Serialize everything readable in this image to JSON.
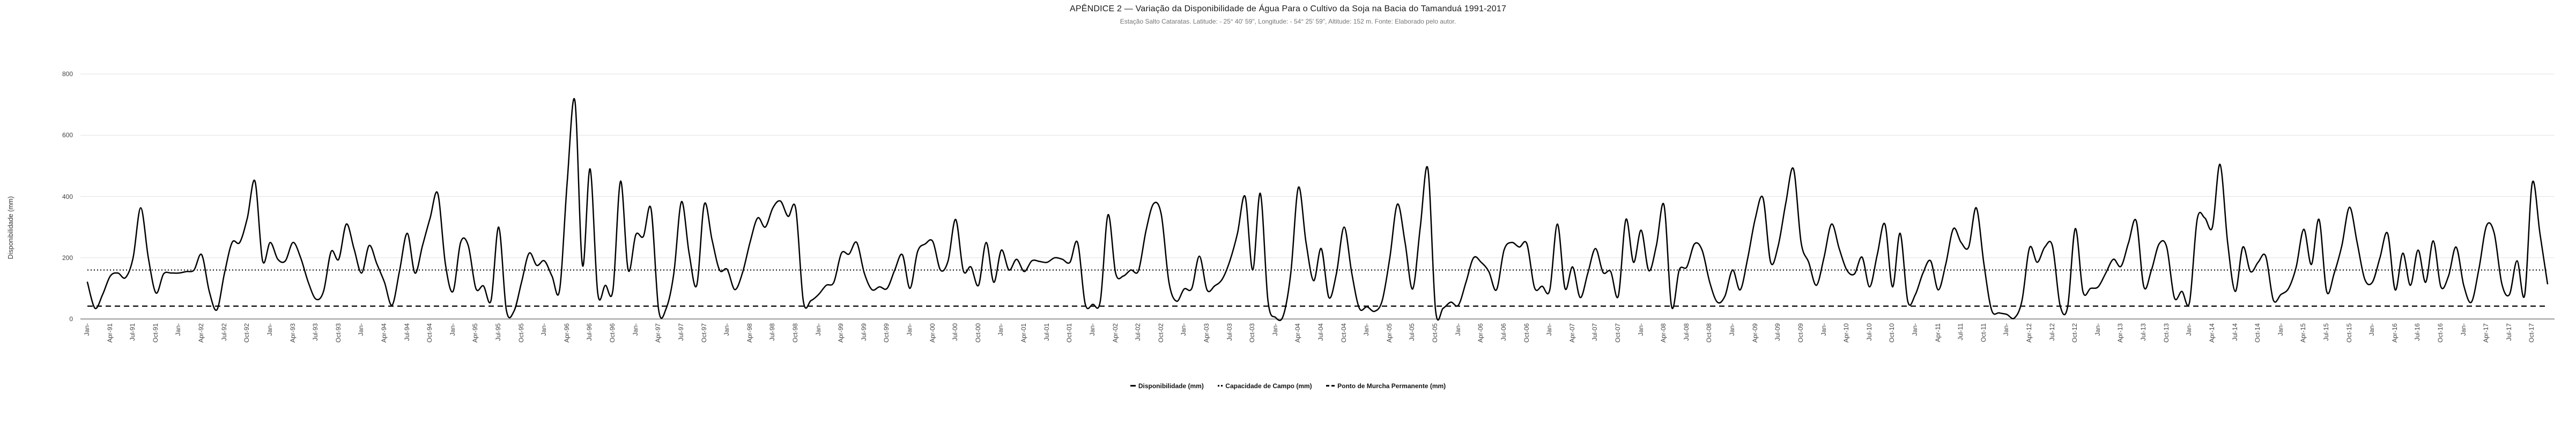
{
  "header": {
    "title": "APÊNDICE 2 — Variação da Disponibilidade de Água Para o Cultivo da Soja na Bacia do Tamanduá 1991-2017",
    "subtitle": "Estação Salto Cataratas. Latitude: - 25° 40' 59\", Longitude: - 54° 25' 59\", Altitude: 152 m. Fonte: Elaborado pelo autor."
  },
  "chart_data": {
    "type": "line",
    "title": "APÊNDICE 2 — Variação da Disponibilidade de Água Para o Cultivo da Soja na Bacia do Tamanduá 1991-2017",
    "subtitle": "Estação Salto Cataratas. Latitude: - 25° 40' 59\", Longitude: - 54° 25' 59\", Altitude: 152 m. Fonte: Elaborado pelo autor.",
    "ylabel": "Disponibilidade (mm)",
    "xlabel": "",
    "ylim": [
      0,
      800
    ],
    "yticks": [
      0,
      200,
      400,
      600,
      800
    ],
    "grid": "horizontal",
    "legend_position": "bottom",
    "legend": [
      "Disponibilidade (mm)",
      "Capacidade de Campo (mm)",
      "Ponto de Murcha Permanente (mm)"
    ],
    "line_color": "#000000",
    "x_start_month": "Jan-1991",
    "x_end_month": "Dec-2017",
    "x_tick_every_months": 3,
    "x_tick_labels": [
      "Jan-",
      "Apr-91",
      "Jul-91",
      "Oct-91",
      "Jan-",
      "Apr-92",
      "Jul-92",
      "Oct-92",
      "Jan-",
      "Apr-93",
      "Jul-93",
      "Oct-93",
      "Jan-",
      "Apr-94",
      "Jul-94",
      "Oct-94",
      "Jan-",
      "Apr-95",
      "Jul-95",
      "Oct-95",
      "Jan-",
      "Apr-96",
      "Jul-96",
      "Oct-96",
      "Jan-",
      "Apr-97",
      "Jul-97",
      "Oct-97",
      "Jan-",
      "Apr-98",
      "Jul-98",
      "Oct-98",
      "Jan-",
      "Apr-99",
      "Jul-99",
      "Oct-99",
      "Jan-",
      "Apr-00",
      "Jul-00",
      "Oct-00",
      "Jan-",
      "Apr-01",
      "Jul-01",
      "Oct-01",
      "Jan-",
      "Apr-02",
      "Jul-02",
      "Oct-02",
      "Jan-",
      "Apr-03",
      "Jul-03",
      "Oct-03",
      "Jan-",
      "Apr-04",
      "Jul-04",
      "Oct-04",
      "Jan-",
      "Apr-05",
      "Jul-05",
      "Oct-05",
      "Jan-",
      "Apr-06",
      "Jul-06",
      "Oct-06",
      "Jan-",
      "Apr-07",
      "Jul-07",
      "Oct-07",
      "Jan-",
      "Apr-08",
      "Jul-08",
      "Oct-08",
      "Jan-",
      "Apr-09",
      "Jul-09",
      "Oct-09",
      "Jan-",
      "Apr-10",
      "Jul-10",
      "Oct-10",
      "Jan-",
      "Apr-11",
      "Jul-11",
      "Oct-11",
      "Jan-",
      "Apr-12",
      "Jul-12",
      "Oct-12",
      "Jan-",
      "Apr-13",
      "Jul-13",
      "Oct-13",
      "Jan-",
      "Apr-14",
      "Jul-14",
      "Oct-14",
      "Jan-",
      "Apr-15",
      "Jul-15",
      "Oct-15",
      "Jan-",
      "Apr-16",
      "Jul-16",
      "Oct-16",
      "Jan-",
      "Apr-17",
      "Jul-17",
      "Oct-17"
    ],
    "series": [
      {
        "name": "Disponibilidade (mm)",
        "style": "solid",
        "values": [
          120,
          35,
          80,
          140,
          150,
          135,
          200,
          363,
          200,
          85,
          147,
          150,
          150,
          155,
          160,
          210,
          90,
          30,
          150,
          250,
          250,
          330,
          450,
          190,
          250,
          195,
          190,
          250,
          200,
          120,
          65,
          90,
          220,
          195,
          310,
          230,
          150,
          240,
          180,
          120,
          45,
          160,
          280,
          150,
          240,
          330,
          410,
          180,
          90,
          250,
          240,
          100,
          108,
          61,
          300,
          30,
          25,
          120,
          215,
          175,
          190,
          140,
          95,
          450,
          713,
          175,
          490,
          85,
          110,
          95,
          450,
          160,
          275,
          270,
          360,
          30,
          35,
          150,
          383,
          215,
          110,
          375,
          260,
          160,
          162,
          96,
          150,
          250,
          330,
          300,
          363,
          385,
          335,
          360,
          58,
          60,
          80,
          110,
          120,
          215,
          212,
          250,
          150,
          96,
          105,
          100,
          160,
          210,
          100,
          220,
          245,
          253,
          160,
          190,
          325,
          158,
          170,
          110,
          250,
          120,
          225,
          160,
          195,
          155,
          190,
          188,
          185,
          200,
          195,
          185,
          250,
          50,
          48,
          60,
          340,
          150,
          140,
          160,
          158,
          290,
          377,
          340,
          120,
          58,
          98,
          100,
          205,
          95,
          108,
          130,
          190,
          280,
          400,
          160,
          410,
          60,
          5,
          10,
          150,
          430,
          250,
          125,
          230,
          70,
          150,
          300,
          150,
          35,
          40,
          25,
          60,
          200,
          375,
          250,
          98,
          300,
          490,
          30,
          35,
          55,
          45,
          120,
          200,
          185,
          155,
          95,
          225,
          250,
          235,
          245,
          102,
          107,
          95,
          310,
          100,
          170,
          70,
          150,
          230,
          152,
          155,
          75,
          325,
          185,
          290,
          158,
          240,
          372,
          40,
          160,
          170,
          245,
          225,
          120,
          55,
          75,
          160,
          95,
          200,
          330,
          395,
          185,
          240,
          380,
          490,
          250,
          185,
          110,
          200,
          310,
          230,
          160,
          147,
          202,
          105,
          210,
          310,
          105,
          280,
          58,
          80,
          150,
          190,
          95,
          180,
          295,
          250,
          235,
          363,
          180,
          30,
          20,
          15,
          3,
          60,
          233,
          185,
          235,
          238,
          45,
          40,
          295,
          90,
          100,
          105,
          150,
          195,
          172,
          250,
          320,
          105,
          160,
          245,
          235,
          70,
          90,
          55,
          325,
          330,
          300,
          505,
          250,
          90,
          235,
          155,
          185,
          205,
          62,
          80,
          100,
          170,
          293,
          178,
          325,
          90,
          150,
          240,
          365,
          250,
          130,
          120,
          200,
          280,
          95,
          215,
          110,
          225,
          120,
          255,
          105,
          140,
          235,
          110,
          55,
          165,
          305,
          280,
          115,
          80,
          190,
          78,
          445,
          280,
          115
        ]
      },
      {
        "name": "Capacidade de Campo (mm)",
        "style": "dotted",
        "constant_value": 160
      },
      {
        "name": "Ponto de Murcha Permanente (mm)",
        "style": "dashed",
        "constant_value": 42
      }
    ]
  }
}
